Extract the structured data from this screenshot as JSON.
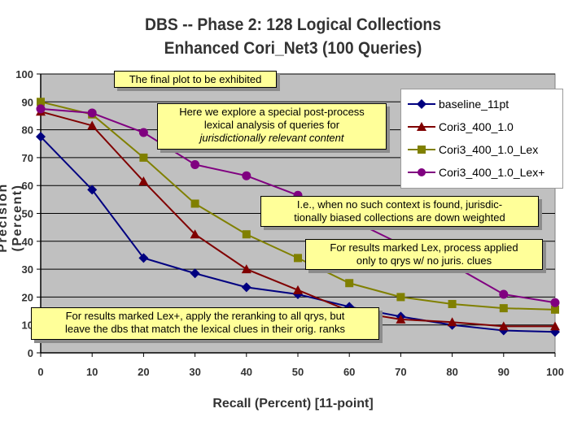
{
  "title_lines": [
    "DBS -- Phase 2:  128 Logical Collections",
    "Enhanced Cori_Net3  (100 Queries)"
  ],
  "annotations": [
    {
      "lines": [
        "The final plot to be exhibited"
      ]
    },
    {
      "lines": [
        "Here we explore a special post-process",
        "lexical analysis of queries for"
      ],
      "italic_line": "jurisdictionally relevant content"
    },
    {
      "lines": [
        "I.e., when no such context is found, jurisdic-",
        "tionally biased collections are down weighted"
      ]
    },
    {
      "lines": [
        "For results marked Lex, process applied",
        "only to qrys w/ no juris. clues"
      ]
    },
    {
      "lines": [
        "For results marked Lex+, apply the reranking to all qrys, but",
        "leave the dbs that match the lexical clues in their orig. ranks"
      ]
    }
  ],
  "colors": {
    "plot_bg": "#c0c0c0",
    "grid": "#000000"
  },
  "chart_data": {
    "type": "line",
    "xlabel": "Recall (Percent)  [11-point]",
    "ylabel": "Precision  (Percent)",
    "x": [
      0,
      10,
      20,
      30,
      40,
      50,
      60,
      70,
      80,
      90,
      100
    ],
    "xlim": [
      0,
      100
    ],
    "ylim": [
      0,
      100
    ],
    "x_ticks": [
      0,
      10,
      20,
      30,
      40,
      50,
      60,
      70,
      80,
      90,
      100
    ],
    "y_ticks": [
      0,
      10,
      20,
      30,
      40,
      50,
      60,
      70,
      80,
      90,
      100
    ],
    "grid": "horizontal",
    "legend_position": "top-right",
    "series": [
      {
        "name": "baseline_11pt",
        "color": "#000080",
        "marker": "diamond",
        "values": [
          77.5,
          58.5,
          34,
          28.5,
          23.5,
          21,
          16.5,
          13,
          10,
          8,
          7.5
        ]
      },
      {
        "name": "Cori3_400_1.0",
        "color": "#800000",
        "marker": "triangle",
        "values": [
          86.5,
          81.5,
          61.5,
          42.5,
          30,
          22.5,
          15,
          12,
          11,
          9.5,
          9.5
        ]
      },
      {
        "name": "Cori3_400_1.0_Lex",
        "color": "#808000",
        "marker": "square",
        "values": [
          90,
          85.5,
          70,
          53.5,
          42.5,
          34,
          25,
          20,
          17.5,
          16,
          15.5
        ]
      },
      {
        "name": "Cori3_400_1.0_Lex+",
        "color": "#800080",
        "marker": "circle",
        "values": [
          87.5,
          86,
          79,
          67.5,
          63.5,
          56.5,
          48,
          39,
          31.5,
          21,
          18
        ]
      }
    ]
  }
}
